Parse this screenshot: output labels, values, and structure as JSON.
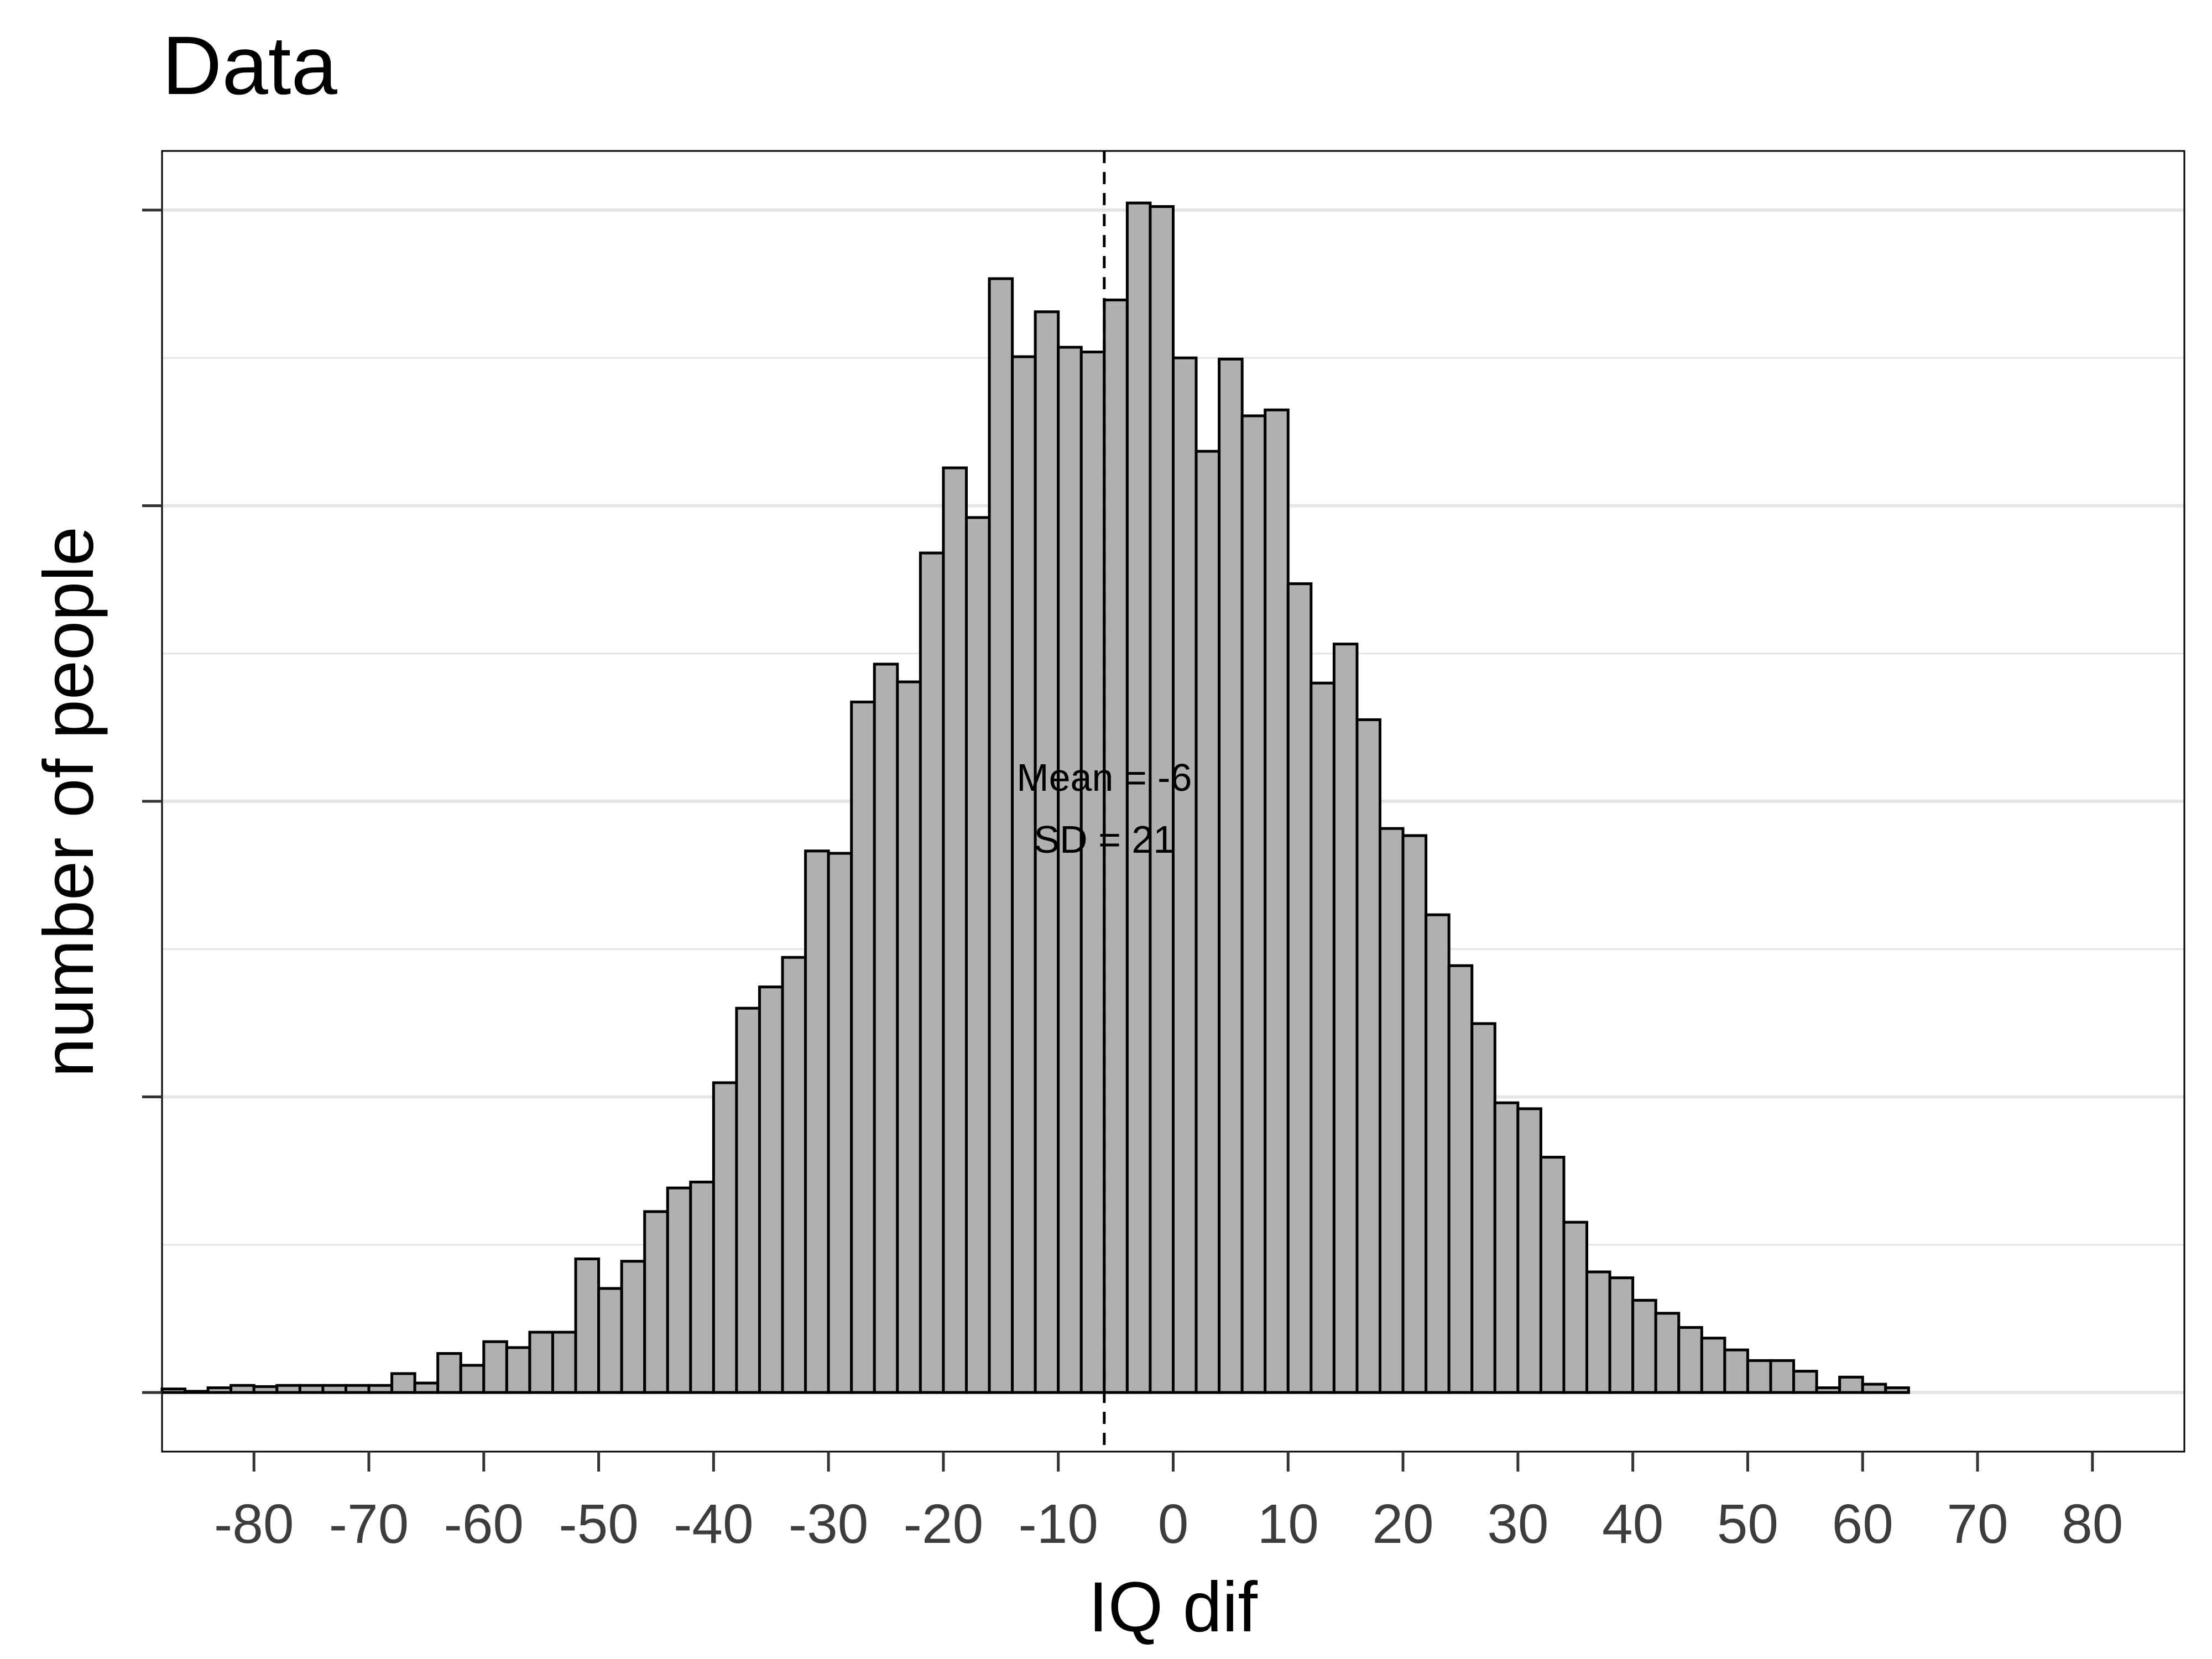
{
  "chart_data": {
    "type": "bar",
    "title": "Data",
    "xlabel": "IQ dif",
    "ylabel": "number of people",
    "xlim": [
      -88,
      88
    ],
    "ylim": [
      -100,
      2100
    ],
    "x_ticks": [
      -80,
      -70,
      -60,
      -50,
      -40,
      -30,
      -20,
      -10,
      0,
      10,
      20,
      30,
      40,
      50,
      60,
      70,
      80
    ],
    "y_tick_values": [
      0,
      500,
      1000,
      1500,
      2000
    ],
    "y_tick_labels_shown": false,
    "grid": true,
    "bin_width": 2,
    "bins": {
      "x_start": [
        -88,
        -86,
        -84,
        -82,
        -80,
        -78,
        -76,
        -74,
        -72,
        -70,
        -68,
        -66,
        -64,
        -62,
        -60,
        -58,
        -56,
        -54,
        -52,
        -50,
        -48,
        -46,
        -44,
        -42,
        -40,
        -38,
        -36,
        -34,
        -32,
        -30,
        -28,
        -26,
        -24,
        -22,
        -20,
        -18,
        -16,
        -14,
        -12,
        -10,
        -8,
        -6,
        -4,
        -2,
        0,
        2,
        4,
        6,
        8,
        10,
        12,
        14,
        16,
        18,
        20,
        22,
        24,
        26,
        28,
        30,
        32,
        34,
        36,
        38,
        40,
        42,
        44,
        46,
        48,
        50,
        52,
        54,
        56,
        58,
        60,
        62
      ],
      "counts": [
        6,
        2,
        8,
        12,
        10,
        12,
        12,
        12,
        12,
        12,
        32,
        16,
        66,
        46,
        86,
        76,
        102,
        102,
        226,
        176,
        222,
        306,
        346,
        356,
        524,
        650,
        686,
        736,
        916,
        912,
        1168,
        1232,
        1202,
        1420,
        1564,
        1480,
        1884,
        1752,
        1828,
        1768,
        1760,
        1848,
        2012,
        2006,
        1750,
        1592,
        1748,
        1652,
        1662,
        1368,
        1200,
        1266,
        1138,
        954,
        942,
        808,
        722,
        624,
        490,
        480,
        398,
        288,
        204,
        194,
        156,
        134,
        110,
        92,
        72,
        54,
        54,
        36,
        8,
        26,
        14,
        8
      ]
    },
    "reference_line": {
      "x": -6,
      "style": "dashed"
    },
    "annotations": [
      "Mean = -6",
      "SD = 21"
    ],
    "colors": {
      "bar_fill": "#b0b0b0",
      "bar_stroke": "#000000",
      "grid": "#e5e5e5",
      "axis_text": "#3d3d3d"
    }
  }
}
